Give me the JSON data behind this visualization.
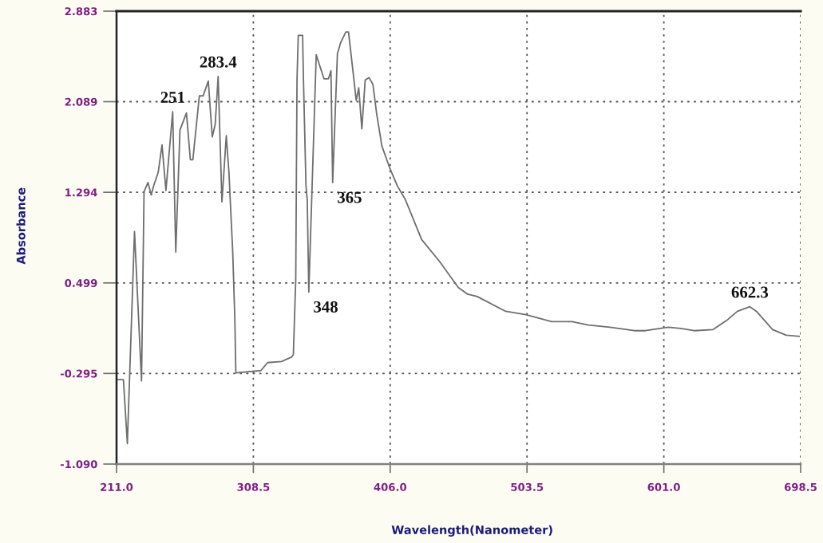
{
  "chart_data": {
    "type": "line",
    "xlabel": "Wavelength(Nanometer)",
    "ylabel": "Absorbance",
    "x": [
      211.0,
      215.9,
      218.7,
      223.8,
      228.8,
      230.6,
      233.4,
      235.7,
      237.4,
      240.7,
      243.4,
      246.2,
      251.0,
      253.2,
      256.2,
      260.8,
      263.6,
      265.4,
      270.0,
      272.7,
      276.4,
      279.2,
      281.3,
      283.4,
      286.1,
      289.2,
      291.1,
      292.0,
      293.8,
      295.3,
      296.0,
      313.9,
      318.6,
      328.6,
      335.9,
      337.0,
      338.7,
      339.6,
      340.5,
      343.6,
      344.2,
      346.0,
      346.9,
      348.0,
      353.3,
      358.8,
      362.0,
      363.8,
      365.0,
      368.4,
      370.8,
      374.4,
      376.3,
      379.9,
      381.8,
      383.6,
      385.8,
      388.2,
      391.0,
      393.7,
      396.4,
      400.1,
      405.6,
      411.1,
      416.8,
      428.4,
      441.0,
      454.5,
      461.2,
      468.0,
      488.3,
      502.7,
      521.1,
      535.6,
      547.2,
      562.6,
      580.0,
      587.8,
      604.2,
      612.9,
      622.6,
      636.1,
      645.8,
      653.5,
      662.3,
      667.0,
      678.5,
      688.2,
      697.4
    ],
    "series": [
      {
        "color": "#6e6e6e",
        "values": [
          -0.35,
          -0.35,
          -0.91,
          0.95,
          -0.36,
          1.3,
          1.38,
          1.27,
          1.35,
          1.47,
          1.71,
          1.31,
          2.0,
          0.77,
          1.84,
          1.99,
          1.58,
          1.58,
          2.14,
          2.14,
          2.27,
          1.78,
          1.89,
          2.31,
          1.21,
          1.79,
          1.47,
          1.23,
          0.77,
          0.18,
          -0.29,
          -0.27,
          -0.2,
          -0.19,
          -0.15,
          -0.13,
          0.53,
          2.28,
          2.67,
          2.67,
          2.28,
          1.35,
          1.23,
          0.42,
          2.5,
          2.29,
          2.29,
          2.36,
          1.38,
          2.51,
          2.61,
          2.7,
          2.7,
          2.31,
          2.1,
          2.21,
          1.85,
          2.28,
          2.3,
          2.24,
          1.98,
          1.7,
          1.51,
          1.35,
          1.23,
          0.88,
          0.69,
          0.46,
          0.4,
          0.38,
          0.25,
          0.22,
          0.16,
          0.16,
          0.13,
          0.11,
          0.08,
          0.08,
          0.11,
          0.1,
          0.08,
          0.09,
          0.17,
          0.25,
          0.29,
          0.25,
          0.09,
          0.04,
          0.03
        ]
      }
    ],
    "xlim": [
      211.0,
      698.5
    ],
    "xticks": [
      {
        "value": 211,
        "label": "211.0"
      },
      308.5,
      {
        "value": 406,
        "label": "406.0"
      },
      503.5,
      {
        "value": 601,
        "label": "601.0"
      },
      698.5
    ],
    "ylim": [
      -1.09,
      2.883
    ],
    "yticks": [
      {
        "value": -1.09,
        "label": "-1.090"
      },
      -0.295,
      0.499,
      1.294,
      2.089,
      2.883
    ],
    "grid": true,
    "line_style": "solid",
    "annotations": [
      {
        "text": "251",
        "x": 251,
        "y": 2.0
      },
      {
        "text": "283.4",
        "x": 283.4,
        "y": 2.31
      },
      {
        "text": "348",
        "x": 348,
        "y": 0.42
      },
      {
        "text": "365",
        "x": 365,
        "y": 1.38
      },
      {
        "text": "662.3",
        "x": 662.3,
        "y": 0.29
      }
    ]
  }
}
